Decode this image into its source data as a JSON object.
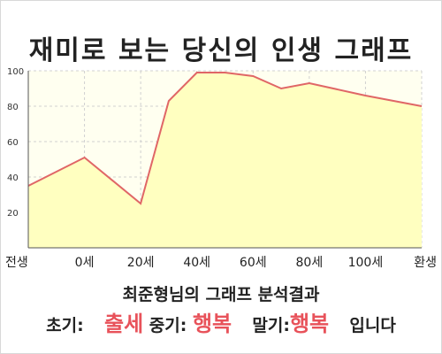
{
  "chart_data": {
    "type": "area",
    "title": "재미로 보는 당신의 인생 그래프",
    "x_labels": [
      "전생",
      "0세",
      "20세",
      "40세",
      "60세",
      "80세",
      "100세",
      "환생"
    ],
    "y_ticks": [
      20,
      40,
      60,
      80,
      100
    ],
    "ylim": [
      0,
      100
    ],
    "grid": true,
    "series": [
      {
        "values": [
          {
            "x": "전생",
            "y": 35
          },
          {
            "x": "0세",
            "y": 51
          },
          {
            "x": "20세",
            "y": 25
          },
          {
            "x": "30세",
            "y": 83
          },
          {
            "x": "40세",
            "y": 99
          },
          {
            "x": "50세",
            "y": 99
          },
          {
            "x": "60세",
            "y": 97
          },
          {
            "x": "70세",
            "y": 90
          },
          {
            "x": "80세",
            "y": 93
          },
          {
            "x": "100세",
            "y": 86
          },
          {
            "x": "환생",
            "y": 80
          }
        ],
        "line_color": "#e06666",
        "fill_color": "#ffffc0"
      }
    ]
  },
  "summary": {
    "heading": "최준형님의 그래프 분석결과",
    "early_label": "초기:",
    "early_value": "출세",
    "middle_label": "중기:",
    "middle_value": "행복",
    "late_label": "말기:",
    "late_value": "행복",
    "suffix": "입니다"
  },
  "colors": {
    "highlight": "#e8525a",
    "plot_background": "#fffff0"
  }
}
